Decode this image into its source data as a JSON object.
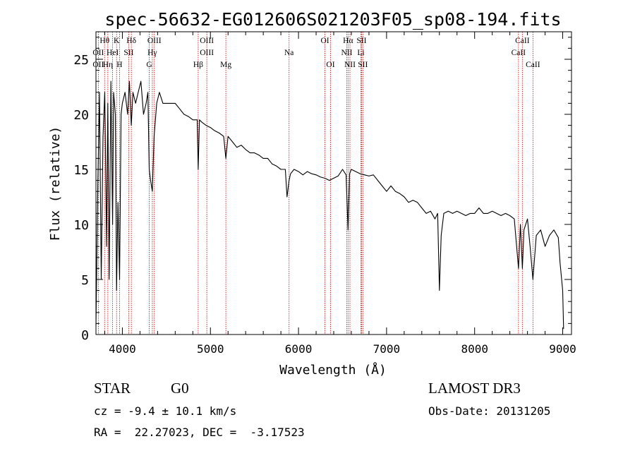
{
  "title": "spec-56632-EG012606S021203F05_sp08-194.fits",
  "info": {
    "object_type": "STAR",
    "object_class": "G0",
    "survey": "LAMOST DR3",
    "cz_line": "cz = -9.4 ± 10.1 km/s",
    "obs_date_line": "Obs-Date: 20131205",
    "radec_line": "RA =  22.27023, DEC =  -3.17523"
  },
  "colors": {
    "spectrum": "#000000",
    "line_markers": "#cc0000",
    "axes": "#000000"
  },
  "chart_data": {
    "type": "line",
    "title": "spec-56632-EG012606S021203F05_sp08-194.fits",
    "xlabel": "Wavelength (Å)",
    "ylabel": "Flux (relative)",
    "xlim": [
      3700,
      9100
    ],
    "ylim": [
      0,
      27.5
    ],
    "xticks": [
      4000,
      5000,
      6000,
      7000,
      8000,
      9000
    ],
    "yticks": [
      0,
      5,
      10,
      15,
      20,
      25
    ],
    "grid": false,
    "legend": "none",
    "series": [
      {
        "x": [
          3700,
          3720,
          3740,
          3760,
          3780,
          3800,
          3820,
          3835,
          3850,
          3870,
          3889,
          3900,
          3920,
          3934,
          3950,
          3968,
          3985,
          4000,
          4030,
          4060,
          4080,
          4101,
          4120,
          4150,
          4180,
          4210,
          4240,
          4270,
          4290,
          4305,
          4320,
          4340,
          4360,
          4390,
          4420,
          4460,
          4500,
          4550,
          4600,
          4650,
          4700,
          4750,
          4800,
          4850,
          4861,
          4875,
          4900,
          4950,
          5000,
          5050,
          5100,
          5150,
          5175,
          5200,
          5250,
          5300,
          5350,
          5400,
          5450,
          5500,
          5550,
          5600,
          5650,
          5700,
          5750,
          5800,
          5850,
          5870,
          5893,
          5910,
          5950,
          6000,
          6050,
          6100,
          6150,
          6200,
          6250,
          6300,
          6350,
          6400,
          6450,
          6500,
          6540,
          6563,
          6580,
          6600,
          6650,
          6700,
          6750,
          6800,
          6850,
          6900,
          6950,
          7000,
          7050,
          7100,
          7150,
          7200,
          7250,
          7300,
          7350,
          7400,
          7450,
          7500,
          7550,
          7580,
          7600,
          7620,
          7650,
          7700,
          7750,
          7800,
          7850,
          7900,
          7950,
          8000,
          8050,
          8100,
          8150,
          8200,
          8250,
          8300,
          8350,
          8400,
          8450,
          8498,
          8520,
          8542,
          8560,
          8600,
          8630,
          8662,
          8700,
          8750,
          8800,
          8850,
          8900,
          8950,
          8970,
          9000,
          9010
        ],
        "y": [
          0.8,
          13,
          22,
          5,
          18,
          22,
          8,
          21,
          5,
          23,
          10,
          22,
          20,
          4,
          12,
          5,
          20,
          21,
          22,
          20,
          23,
          19,
          22,
          21,
          22,
          23,
          20,
          21,
          22,
          15,
          14,
          13,
          18,
          21,
          22,
          21,
          21,
          21,
          21,
          20.5,
          20,
          19.8,
          19.5,
          19.5,
          15,
          19.5,
          19.3,
          19,
          18.8,
          18.5,
          18.3,
          18,
          16,
          18,
          17.5,
          17,
          17.2,
          16.8,
          16.5,
          16.5,
          16.3,
          16,
          16,
          15.5,
          15.3,
          15,
          15,
          12.5,
          14,
          14.6,
          15,
          14.8,
          14.5,
          14.8,
          14.6,
          14.5,
          14.3,
          14.2,
          14,
          14.2,
          14.4,
          15,
          14.5,
          9.5,
          14.6,
          15,
          14.8,
          14.6,
          14.5,
          14.4,
          14.5,
          14,
          13.5,
          13,
          13.5,
          13,
          12.8,
          12.5,
          12,
          12.2,
          12,
          11.5,
          11,
          11.2,
          10.5,
          11,
          4,
          9,
          11,
          11.2,
          11,
          11.2,
          11,
          10.8,
          11,
          11,
          11.5,
          11,
          11,
          11.2,
          11,
          10.8,
          11,
          10.8,
          10.5,
          6,
          10,
          6,
          9.5,
          10.5,
          8,
          5,
          9,
          9.5,
          8,
          9,
          9.5,
          8.8,
          6.5,
          4,
          0.5
        ]
      }
    ],
    "spectral_lines": [
      {
        "label": "Hθ",
        "wavelength": 3798,
        "row": 1
      },
      {
        "label": "K",
        "wavelength": 3934,
        "row": 1
      },
      {
        "label": "Hδ",
        "wavelength": 4102,
        "row": 1
      },
      {
        "label": "OIII",
        "wavelength": 4363,
        "row": 1
      },
      {
        "label": "OIII",
        "wavelength": 4959,
        "row": 1
      },
      {
        "label": "OI",
        "wavelength": 6300,
        "row": 1
      },
      {
        "label": "Hα",
        "wavelength": 6563,
        "row": 1
      },
      {
        "label": "SII",
        "wavelength": 6716,
        "row": 1
      },
      {
        "label": "CaII",
        "wavelength": 8542,
        "row": 1
      },
      {
        "label": "OII",
        "wavelength": 3727,
        "row": 2
      },
      {
        "label": "HeI",
        "wavelength": 3889,
        "row": 2
      },
      {
        "label": "SII",
        "wavelength": 4072,
        "row": 2
      },
      {
        "label": "Hγ",
        "wavelength": 4340,
        "row": 2
      },
      {
        "label": "OIII",
        "wavelength": 4959,
        "row": 2
      },
      {
        "label": "Na",
        "wavelength": 5893,
        "row": 2
      },
      {
        "label": "NII",
        "wavelength": 6548,
        "row": 2
      },
      {
        "label": "Li",
        "wavelength": 6708,
        "row": 2
      },
      {
        "label": "CaII",
        "wavelength": 8498,
        "row": 2
      },
      {
        "label": "OII",
        "wavelength": 3727,
        "row": 3
      },
      {
        "label": "Hη",
        "wavelength": 3835,
        "row": 3
      },
      {
        "label": "H",
        "wavelength": 3968,
        "row": 3
      },
      {
        "label": "G",
        "wavelength": 4305,
        "row": 3
      },
      {
        "label": "Hβ",
        "wavelength": 4861,
        "row": 3
      },
      {
        "label": "Mg",
        "wavelength": 5175,
        "row": 3
      },
      {
        "label": "OI",
        "wavelength": 6364,
        "row": 3
      },
      {
        "label": "NII",
        "wavelength": 6584,
        "row": 3
      },
      {
        "label": "SII",
        "wavelength": 6731,
        "row": 3
      },
      {
        "label": "CaII",
        "wavelength": 8662,
        "row": 3
      }
    ]
  }
}
